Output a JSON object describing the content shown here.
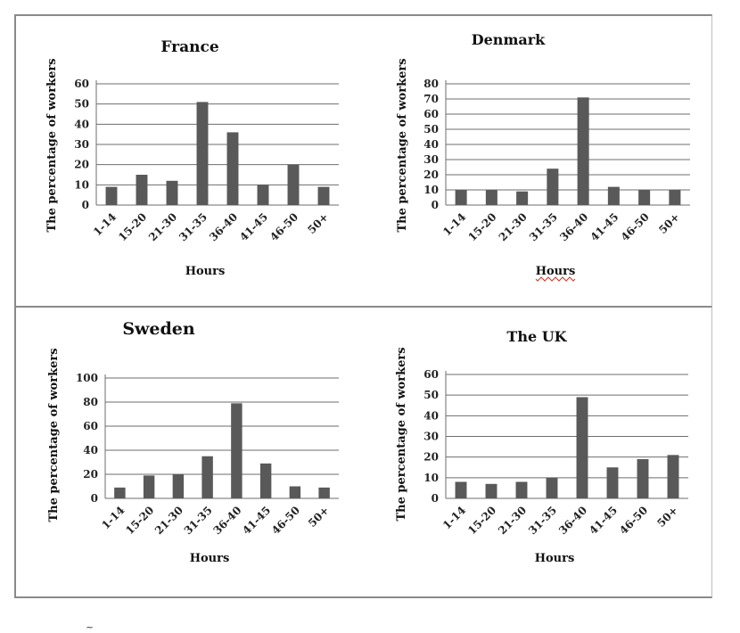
{
  "chart_data": [
    {
      "type": "bar",
      "title": "France",
      "xlabel": "Hours",
      "ylabel": "The percentage of workers",
      "categories": [
        "1-14",
        "15-20",
        "21-30",
        "31-35",
        "36-40",
        "41-45",
        "46-50",
        "50+"
      ],
      "values": [
        9,
        15,
        12,
        51,
        36,
        10,
        20,
        9
      ],
      "ylim": [
        0,
        60
      ],
      "yticks": [
        "0",
        "10",
        "20",
        "30",
        "40",
        "50",
        "60"
      ],
      "grid": true,
      "bar_color": "#595959"
    },
    {
      "type": "bar",
      "title": "Denmark",
      "xlabel": "Hours",
      "ylabel": "The percentage of workers",
      "categories": [
        "1-14",
        "15-20",
        "21-30",
        "31-35",
        "36-40",
        "41-45",
        "46-50",
        "50+"
      ],
      "values": [
        10,
        10,
        9,
        24,
        71,
        12,
        10,
        10
      ],
      "ylim": [
        0,
        80
      ],
      "yticks": [
        "0",
        "10",
        "20",
        "30",
        "40",
        "50",
        "60",
        "70",
        "80"
      ],
      "grid": true,
      "bar_color": "#595959"
    },
    {
      "type": "bar",
      "title": "Sweden",
      "xlabel": "Hours",
      "ylabel": "The percentage of workers",
      "categories": [
        "1-14",
        "15-20",
        "21-30",
        "31-35",
        "36-40",
        "41-45",
        "46-50",
        "50+"
      ],
      "values": [
        9,
        19,
        20,
        35,
        79,
        29,
        10,
        9
      ],
      "ylim": [
        0,
        100
      ],
      "yticks": [
        "0",
        "20",
        "40",
        "60",
        "80",
        "100"
      ],
      "grid": true,
      "bar_color": "#595959"
    },
    {
      "type": "bar",
      "title": "The UK",
      "xlabel": "Hours",
      "ylabel": "The percentage of workers",
      "categories": [
        "1-14",
        "15-20",
        "21-30",
        "31-35",
        "36-40",
        "41-45",
        "46-50",
        "50+"
      ],
      "values": [
        8,
        7,
        8,
        10,
        49,
        15,
        19,
        21
      ],
      "ylim": [
        0,
        60
      ],
      "yticks": [
        "0",
        "10",
        "20",
        "30",
        "40",
        "50",
        "60"
      ],
      "grid": true,
      "bar_color": "#595959"
    }
  ],
  "stray_mark": "~"
}
